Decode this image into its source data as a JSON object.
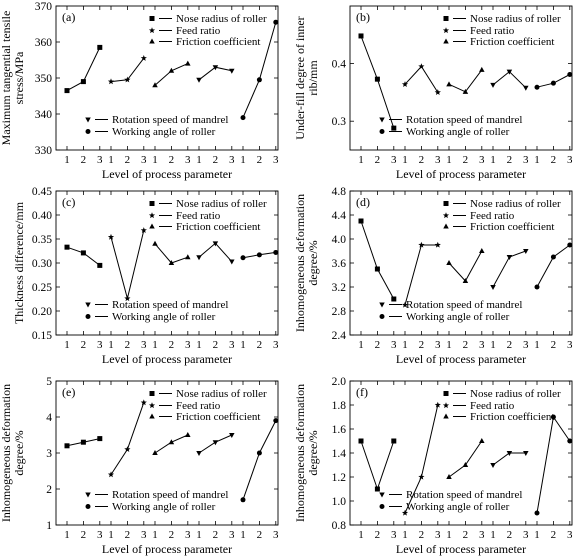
{
  "legend_marker_names": {
    "Nose radius of roller": "square",
    "Feed ratio": "star",
    "Friction coefficient": "triangle-up",
    "Rotation speed of mandrel": "triangle-down",
    "Working angle of roller": "circle"
  },
  "chart_data": [
    {
      "type": "line",
      "panel_label": "(a)",
      "xlabel": "Level of process parameter",
      "ylabel": "Maximum tangential tensile stress/MPa",
      "ylim": [
        330,
        370
      ],
      "yticks": [
        330,
        340,
        350,
        360,
        370
      ],
      "ytick_decimals": 0,
      "level_labels": [
        "1",
        "2",
        "3"
      ],
      "legend_top": [
        "Nose radius of roller",
        "Feed ratio",
        "Friction coefficient"
      ],
      "legend_bottom": [
        "Rotation speed of mandrel",
        "Working angle of roller"
      ],
      "series": [
        {
          "name": "Nose radius of roller",
          "values": [
            346.5,
            349,
            358.5
          ]
        },
        {
          "name": "Feed ratio",
          "values": [
            349,
            349.5,
            355.5
          ]
        },
        {
          "name": "Friction coefficient",
          "values": [
            348,
            352,
            354
          ]
        },
        {
          "name": "Rotation speed of mandrel",
          "values": [
            349.5,
            353,
            352
          ]
        },
        {
          "name": "Working angle of roller",
          "values": [
            339,
            349.5,
            365.5
          ]
        }
      ]
    },
    {
      "type": "line",
      "panel_label": "(b)",
      "xlabel": "Level of process parameter",
      "ylabel": "Under-fill degree of inner rib/mm",
      "ylim": [
        0.25,
        0.5
      ],
      "yticks": [
        0.3,
        0.4
      ],
      "ytick_decimals": 1,
      "level_labels": [
        "1",
        "2",
        "3"
      ],
      "legend_top": [
        "Nose radius of roller",
        "Feed ratio",
        "Friction coefficient"
      ],
      "legend_bottom": [
        "Rotation speed of mandrel",
        "Working angle of roller"
      ],
      "series": [
        {
          "name": "Nose radius of roller",
          "values": [
            0.448,
            0.373,
            0.288
          ]
        },
        {
          "name": "Feed ratio",
          "values": [
            0.364,
            0.395,
            0.35
          ]
        },
        {
          "name": "Friction coefficient",
          "values": [
            0.364,
            0.351,
            0.389
          ]
        },
        {
          "name": "Rotation speed of mandrel",
          "values": [
            0.363,
            0.386,
            0.358
          ]
        },
        {
          "name": "Working angle of roller",
          "values": [
            0.359,
            0.366,
            0.381
          ]
        }
      ]
    },
    {
      "type": "line",
      "panel_label": "(c)",
      "xlabel": "Level of process parameter",
      "ylabel": "Thickness difference/mm",
      "ylim": [
        0.15,
        0.45
      ],
      "yticks": [
        0.15,
        0.2,
        0.25,
        0.3,
        0.35,
        0.4,
        0.45
      ],
      "ytick_decimals": 2,
      "level_labels": [
        "1",
        "2",
        "3"
      ],
      "legend_top": [
        "Nose radius of roller",
        "Feed ratio",
        "Friction coefficient"
      ],
      "legend_bottom": [
        "Rotation speed of mandrel",
        "Working angle of roller"
      ],
      "series": [
        {
          "name": "Nose radius of roller",
          "values": [
            0.333,
            0.321,
            0.295
          ]
        },
        {
          "name": "Feed ratio",
          "values": [
            0.354,
            0.226,
            0.368
          ]
        },
        {
          "name": "Friction coefficient",
          "values": [
            0.34,
            0.3,
            0.312
          ]
        },
        {
          "name": "Rotation speed of mandrel",
          "values": [
            0.312,
            0.341,
            0.303
          ]
        },
        {
          "name": "Working angle of roller",
          "values": [
            0.311,
            0.317,
            0.322
          ]
        }
      ]
    },
    {
      "type": "line",
      "panel_label": "(d)",
      "xlabel": "Level of process parameter",
      "ylabel": "Inhomogeneous deformation degree/%",
      "ylim": [
        2.4,
        4.8
      ],
      "yticks": [
        2.4,
        2.8,
        3.2,
        3.6,
        4.0,
        4.4,
        4.8
      ],
      "ytick_decimals": 1,
      "level_labels": [
        "1",
        "2",
        "3"
      ],
      "legend_top": [
        "Nose radius of roller",
        "Feed ratio",
        "Friction coefficient"
      ],
      "legend_bottom": [
        "Rotation speed of mandrel",
        "Working angle of roller"
      ],
      "series": [
        {
          "name": "Nose radius of roller",
          "values": [
            4.3,
            3.5,
            3.0
          ]
        },
        {
          "name": "Feed ratio",
          "values": [
            2.9,
            3.9,
            3.9
          ]
        },
        {
          "name": "Friction coefficient",
          "values": [
            3.6,
            3.3,
            3.8
          ]
        },
        {
          "name": "Rotation speed of mandrel",
          "values": [
            3.2,
            3.7,
            3.8
          ]
        },
        {
          "name": "Working angle of roller",
          "values": [
            3.2,
            3.7,
            3.9
          ]
        }
      ]
    },
    {
      "type": "line",
      "panel_label": "(e)",
      "xlabel": "Level of process parameter",
      "ylabel": "Inhomogeneous deformation degree/%",
      "ylim": [
        1,
        5
      ],
      "yticks": [
        1,
        2,
        3,
        4,
        5
      ],
      "ytick_decimals": 0,
      "level_labels": [
        "1",
        "2",
        "3"
      ],
      "legend_top": [
        "Nose radius of roller",
        "Feed ratio",
        "Friction coefficient"
      ],
      "legend_bottom": [
        "Rotation speed of mandrel",
        "Working angle of roller"
      ],
      "series": [
        {
          "name": "Nose radius of roller",
          "values": [
            3.2,
            3.3,
            3.4
          ]
        },
        {
          "name": "Feed ratio",
          "values": [
            2.4,
            3.1,
            4.4
          ]
        },
        {
          "name": "Friction coefficient",
          "values": [
            3.0,
            3.3,
            3.5
          ]
        },
        {
          "name": "Rotation speed of mandrel",
          "values": [
            3.0,
            3.3,
            3.5
          ]
        },
        {
          "name": "Working angle of roller",
          "values": [
            1.7,
            3.0,
            3.9
          ]
        }
      ]
    },
    {
      "type": "line",
      "panel_label": "(f)",
      "xlabel": "Level of process parameter",
      "ylabel": "Inhomogeneous deformation degree/%",
      "ylim": [
        0.8,
        2.0
      ],
      "yticks": [
        0.8,
        1.0,
        1.2,
        1.4,
        1.6,
        1.8,
        2.0
      ],
      "ytick_decimals": 1,
      "level_labels": [
        "1",
        "2",
        "3"
      ],
      "legend_top": [
        "Nose radius of roller",
        "Feed ratio",
        "Friction coefficient"
      ],
      "legend_bottom": [
        "Rotation speed of mandrel",
        "Working angle of roller"
      ],
      "series": [
        {
          "name": "Nose radius of roller",
          "values": [
            1.5,
            1.1,
            1.5
          ]
        },
        {
          "name": "Feed ratio",
          "values": [
            0.9,
            1.2,
            1.8
          ]
        },
        {
          "name": "Friction coefficient",
          "values": [
            1.2,
            1.3,
            1.5
          ]
        },
        {
          "name": "Rotation speed of mandrel",
          "values": [
            1.3,
            1.4,
            1.4
          ]
        },
        {
          "name": "Working angle of roller",
          "values": [
            0.9,
            1.7,
            1.5
          ]
        }
      ]
    }
  ]
}
